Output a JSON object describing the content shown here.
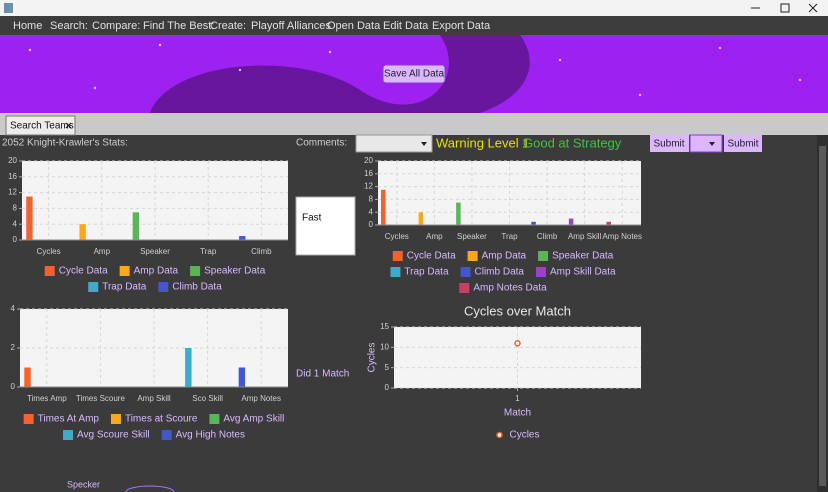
{
  "menu": [
    "Home",
    "Search:",
    "Compare:",
    "Find The Best:",
    "Create:",
    "Playoff Alliances",
    "Open Data",
    "Edit Data",
    "Export Data"
  ],
  "banner": {
    "button": "Save All Data"
  },
  "tab": {
    "label": "Search Teams"
  },
  "stats_label": "2052 Knight-Krawler's Stats:",
  "comments": {
    "label": "Comments:",
    "warning": "Warning Level 1",
    "strength": "Good at Strategy",
    "submit": [
      "Submit",
      "Submit"
    ]
  },
  "notes": "Fast",
  "matches": "Did 1 Match",
  "footer": "Specker",
  "charts": [
    {
      "type": "bar",
      "categories": [
        "Cycles",
        "Amp",
        "Speaker",
        "Trap",
        "Climb"
      ],
      "ylim": [
        0,
        20
      ],
      "yticks": [
        0,
        4,
        8,
        12,
        16,
        20
      ],
      "grid": true,
      "series": [
        {
          "name": "Cycle Data",
          "color": "#f3622d",
          "values": [
            11,
            null,
            null,
            null,
            null
          ]
        },
        {
          "name": "Amp Data",
          "color": "#fba71b",
          "values": [
            null,
            4,
            null,
            null,
            null
          ]
        },
        {
          "name": "Speaker Data",
          "color": "#57b757",
          "values": [
            null,
            null,
            7,
            null,
            null
          ]
        },
        {
          "name": "Trap Data",
          "color": "#41a9c9",
          "values": [
            null,
            null,
            null,
            0,
            null
          ]
        },
        {
          "name": "Climb Data",
          "color": "#4258c9",
          "values": [
            null,
            null,
            null,
            null,
            1
          ]
        }
      ]
    },
    {
      "type": "bar",
      "categories": [
        "Cycles",
        "Amp",
        "Speaker",
        "Trap",
        "Climb",
        "Amp Skill",
        "Amp Notes"
      ],
      "ylim": [
        0,
        20
      ],
      "yticks": [
        0,
        4,
        8,
        12,
        16,
        20
      ],
      "grid": true,
      "series": [
        {
          "name": "Cycle Data",
          "color": "#f3622d",
          "values": [
            11,
            null,
            null,
            null,
            null,
            null,
            null
          ]
        },
        {
          "name": "Amp Data",
          "color": "#fba71b",
          "values": [
            null,
            4,
            null,
            null,
            null,
            null,
            null
          ]
        },
        {
          "name": "Speaker Data",
          "color": "#57b757",
          "values": [
            null,
            null,
            7,
            null,
            null,
            null,
            null
          ]
        },
        {
          "name": "Trap Data",
          "color": "#41a9c9",
          "values": [
            null,
            null,
            null,
            0,
            null,
            null,
            null
          ]
        },
        {
          "name": "Climb Data",
          "color": "#4258c9",
          "values": [
            null,
            null,
            null,
            null,
            1,
            null,
            null
          ]
        },
        {
          "name": "Amp Skill Data",
          "color": "#9a42c8",
          "values": [
            null,
            null,
            null,
            null,
            null,
            2,
            null
          ]
        },
        {
          "name": "Amp Notes Data",
          "color": "#c84164",
          "values": [
            null,
            null,
            null,
            null,
            null,
            null,
            1
          ]
        }
      ]
    },
    {
      "type": "bar",
      "categories": [
        "Times Amp",
        "Times Scoure",
        "Amp Skill",
        "Sco Skill",
        "Amp Notes"
      ],
      "ylim": [
        0,
        4
      ],
      "yticks": [
        0,
        2,
        4
      ],
      "grid": true,
      "series": [
        {
          "name": "Times At Amp",
          "color": "#f3622d",
          "values": [
            1,
            null,
            null,
            null,
            null
          ]
        },
        {
          "name": "Times at Scoure",
          "color": "#fba71b",
          "values": [
            null,
            0,
            null,
            null,
            null
          ]
        },
        {
          "name": "Avg Amp Skill",
          "color": "#57b757",
          "values": [
            null,
            null,
            0,
            null,
            null
          ]
        },
        {
          "name": "Avg Scoure Skill",
          "color": "#41a9c9",
          "values": [
            null,
            null,
            null,
            2,
            null
          ]
        },
        {
          "name": "Avg High Notes",
          "color": "#4258c9",
          "values": [
            null,
            null,
            null,
            null,
            1
          ]
        }
      ]
    },
    {
      "type": "line",
      "title": "Cycles over Match",
      "x_label": "Match",
      "y_label": "Cycles",
      "x": [
        1
      ],
      "xlim": [
        0,
        2
      ],
      "xticks": [
        1
      ],
      "ylim": [
        0,
        15
      ],
      "yticks": [
        0,
        5,
        10,
        15
      ],
      "grid": true,
      "series": [
        {
          "name": "Cycles",
          "color": "#f3622d",
          "values": [
            11
          ]
        }
      ]
    }
  ]
}
